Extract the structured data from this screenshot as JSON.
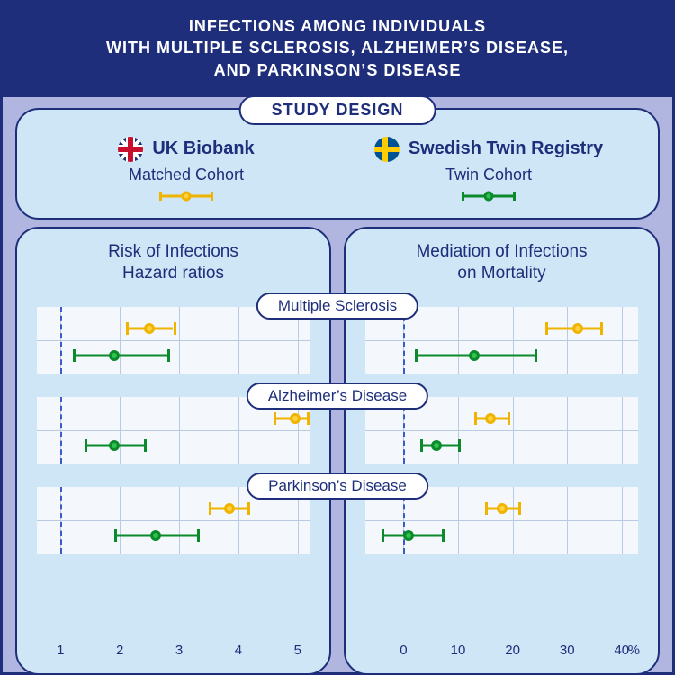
{
  "colors": {
    "page_bg": "#b1b6e0",
    "header_bg": "#1e2e7a",
    "header_text": "#ffffff",
    "panel_bg": "#cfe6f7",
    "panel_border": "#1e2e7a",
    "pill_bg": "#ffffff",
    "text": "#1e2e7a",
    "plot_bg": "#f4f8fc",
    "grid": "#b9cbe2",
    "ref_dash": "#3a5bcc",
    "yellow_line": "#f0b400",
    "yellow_fill": "#ffd23f",
    "green_line": "#0a8a2a",
    "green_fill": "#2fc24d"
  },
  "header": {
    "line1": "INFECTIONS AMONG INDIVIDUALS",
    "line2": "WITH MULTIPLE SCLEROSIS, ALZHEIMER’S DISEASE,",
    "line3": "AND PARKINSON’S DISEASE"
  },
  "study": {
    "title": "STUDY DESIGN",
    "cohorts": [
      {
        "flag": "uk",
        "name": "UK Biobank",
        "sub": "Matched Cohort",
        "color": "yellow"
      },
      {
        "flag": "se",
        "name": "Swedish Twin Registry",
        "sub": "Twin Cohort",
        "color": "green"
      }
    ]
  },
  "left_panel": {
    "title_l1": "Risk of Infections",
    "title_l2": "Hazard ratios",
    "axis": {
      "min": 0.6,
      "max": 5.2,
      "ticks": [
        1,
        2,
        3,
        4,
        5
      ],
      "ref": 1,
      "unit": ""
    }
  },
  "right_panel": {
    "title_l1": "Mediation of Infections",
    "title_l2": "on Mortality",
    "axis": {
      "min": -7,
      "max": 43,
      "ticks": [
        0,
        10,
        20,
        30,
        40
      ],
      "ref": 0,
      "unit": "%"
    }
  },
  "diseases": [
    {
      "label": "Multiple Sclerosis",
      "left": {
        "yellow": {
          "lo": 2.1,
          "pt": 2.5,
          "hi": 2.9
        },
        "green": {
          "lo": 1.2,
          "pt": 1.9,
          "hi": 2.8
        }
      },
      "right": {
        "yellow": {
          "lo": 26,
          "pt": 32,
          "hi": 36
        },
        "green": {
          "lo": 2,
          "pt": 13,
          "hi": 24
        }
      }
    },
    {
      "label": "Alzheimer’s Disease",
      "left": {
        "yellow": {
          "lo": 4.6,
          "pt": 4.95,
          "hi": 5.15
        },
        "green": {
          "lo": 1.4,
          "pt": 1.9,
          "hi": 2.4
        }
      },
      "right": {
        "yellow": {
          "lo": 13,
          "pt": 16,
          "hi": 19
        },
        "green": {
          "lo": 3,
          "pt": 6,
          "hi": 10
        }
      }
    },
    {
      "label": "Parkinson’s Disease",
      "left": {
        "yellow": {
          "lo": 3.5,
          "pt": 3.85,
          "hi": 4.15
        },
        "green": {
          "lo": 1.9,
          "pt": 2.6,
          "hi": 3.3
        }
      },
      "right": {
        "yellow": {
          "lo": 15,
          "pt": 18,
          "hi": 21
        },
        "green": {
          "lo": -4,
          "pt": 1,
          "hi": 7
        }
      }
    }
  ]
}
